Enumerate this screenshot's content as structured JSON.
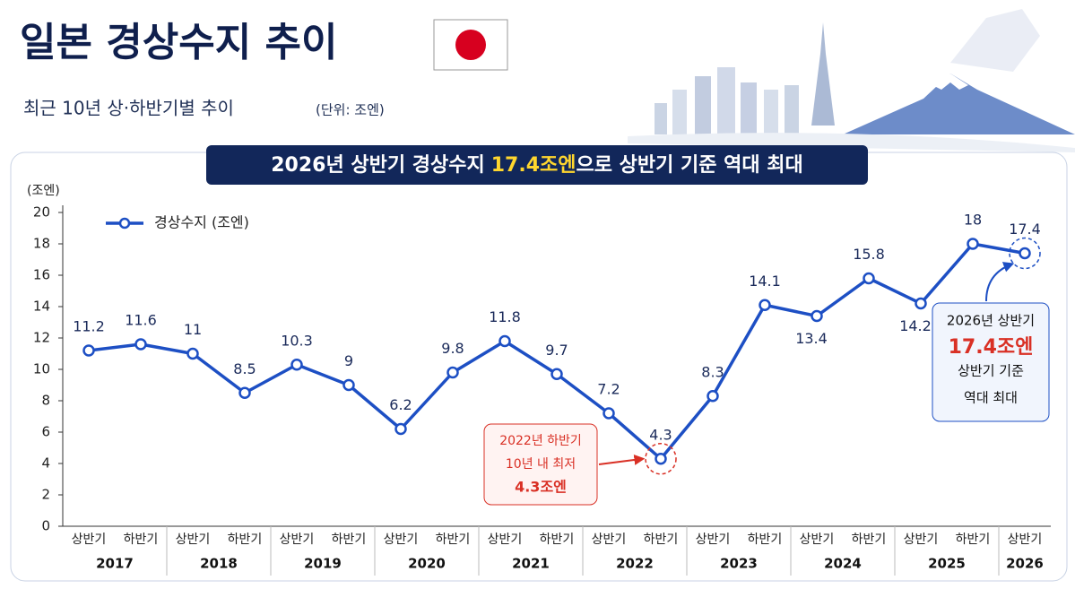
{
  "chart_data": {
    "type": "line",
    "title": "일본 경상수지 추이",
    "subtitle": "최근 10년 상·하반기별 추이",
    "unit_note": "(단위: 조엔)",
    "banner": {
      "before": "2026년 상반기 경상수지",
      "highlight": "17.4조엔",
      "after": "으로 상반기 기준 역대 최대"
    },
    "y_axis_label": "(조엔)",
    "categories": [
      "상반기",
      "하반기",
      "상반기",
      "하반기",
      "상반기",
      "하반기",
      "상반기",
      "하반기",
      "상반기",
      "하반기",
      "상반기",
      "하반기",
      "상반기",
      "하반기",
      "상반기",
      "하반기",
      "상반기",
      "하반기",
      "상반기"
    ],
    "years": [
      "2017",
      "2018",
      "2019",
      "2020",
      "2021",
      "2022",
      "2023",
      "2024",
      "2025",
      "2026"
    ],
    "series": [
      {
        "name": "경상수지 (조엔)",
        "color": "#1d4fc4",
        "values": [
          11.2,
          11.6,
          11.0,
          8.5,
          10.3,
          9.0,
          6.2,
          9.8,
          11.8,
          9.7,
          7.2,
          4.3,
          8.3,
          14.1,
          13.4,
          15.8,
          14.2,
          18.0,
          17.4
        ]
      }
    ],
    "ylim": [
      0,
      20
    ],
    "yticks": [
      0,
      2,
      4,
      6,
      8,
      10,
      12,
      14,
      16,
      18,
      20
    ],
    "annotations": [
      {
        "lines": [
          "2022년 하반기",
          "10년 내 최저",
          "4.3조엔"
        ]
      },
      {
        "lines": [
          "2026년 상반기",
          "17.4조엔",
          "상반기 기준",
          "역대 최대"
        ]
      }
    ]
  }
}
